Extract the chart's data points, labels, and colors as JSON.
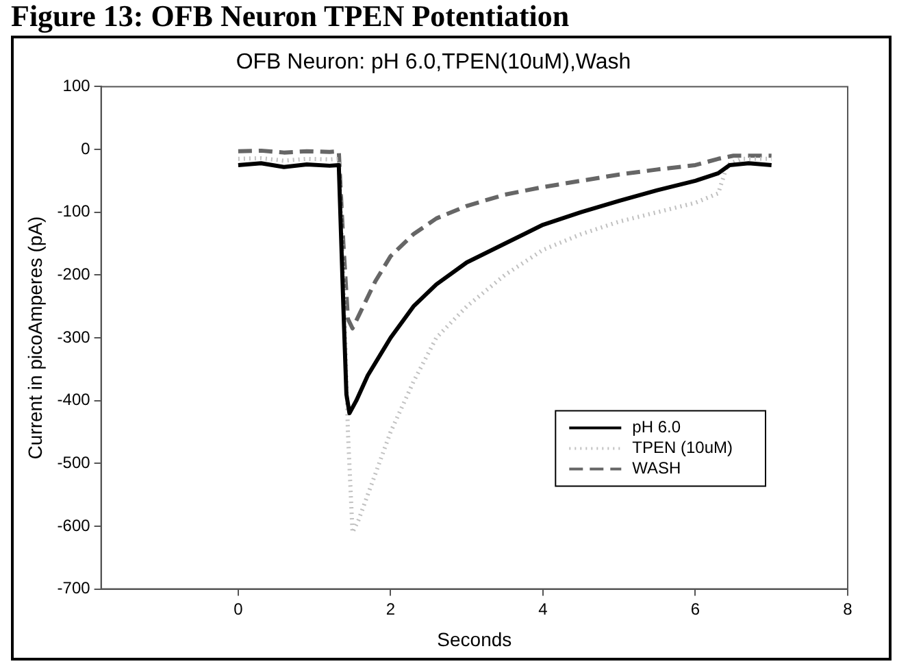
{
  "chart_data": {
    "type": "line",
    "title": "Figure 13: OFB Neuron TPEN Potentiation",
    "subtitle": "OFB Neuron: pH 6.0,TPEN(10uM),Wash",
    "xlabel": "Seconds",
    "ylabel": "Current in picoAmperes (pA)",
    "xlim": [
      -1.8,
      8
    ],
    "xticks": [
      0,
      2,
      4,
      6,
      8
    ],
    "ylim": [
      -700,
      100
    ],
    "yticks": [
      100,
      0,
      -100,
      -200,
      -300,
      -400,
      -500,
      -600,
      -700
    ],
    "grid": false,
    "legend": "bottom right",
    "marker": "none",
    "series": [
      {
        "name": "pH 6.0",
        "color": "#000000",
        "line_style": "solid",
        "x": [
          0,
          0.3,
          0.6,
          0.9,
          1.2,
          1.32,
          1.38,
          1.42,
          1.46,
          1.55,
          1.7,
          2,
          2.3,
          2.6,
          3,
          3.5,
          4,
          4.5,
          5,
          5.5,
          6,
          6.3,
          6.45,
          6.7,
          7
        ],
        "values": [
          -25,
          -22,
          -28,
          -24,
          -26,
          -25,
          -250,
          -390,
          -420,
          -400,
          -360,
          -300,
          -250,
          -215,
          -180,
          -150,
          -120,
          -100,
          -82,
          -65,
          -50,
          -38,
          -25,
          -22,
          -25
        ]
      },
      {
        "name": "TPEN (10uM)",
        "color": "#c0c0c0",
        "line_style": "dotted",
        "x": [
          0,
          0.3,
          0.6,
          0.9,
          1.2,
          1.32,
          1.38,
          1.44,
          1.5,
          1.58,
          1.7,
          1.85,
          2,
          2.3,
          2.6,
          3,
          3.5,
          4,
          4.5,
          5,
          5.5,
          6,
          6.3,
          6.42,
          6.6,
          7
        ],
        "values": [
          -15,
          -14,
          -18,
          -15,
          -16,
          -15,
          -200,
          -450,
          -610,
          -590,
          -550,
          -500,
          -450,
          -370,
          -300,
          -250,
          -200,
          -160,
          -135,
          -115,
          -100,
          -85,
          -70,
          -25,
          -15,
          -15
        ]
      },
      {
        "name": "WASH",
        "color": "#666666",
        "line_style": "dashed",
        "x": [
          0,
          0.3,
          0.6,
          0.9,
          1.2,
          1.32,
          1.38,
          1.44,
          1.5,
          1.6,
          1.8,
          2,
          2.3,
          2.6,
          3,
          3.5,
          4,
          4.5,
          5,
          5.5,
          6,
          6.3,
          6.5,
          7
        ],
        "values": [
          -3,
          -2,
          -5,
          -3,
          -4,
          -3,
          -150,
          -270,
          -285,
          -260,
          -210,
          -170,
          -135,
          -110,
          -90,
          -72,
          -60,
          -50,
          -40,
          -32,
          -25,
          -15,
          -10,
          -10
        ]
      }
    ]
  }
}
